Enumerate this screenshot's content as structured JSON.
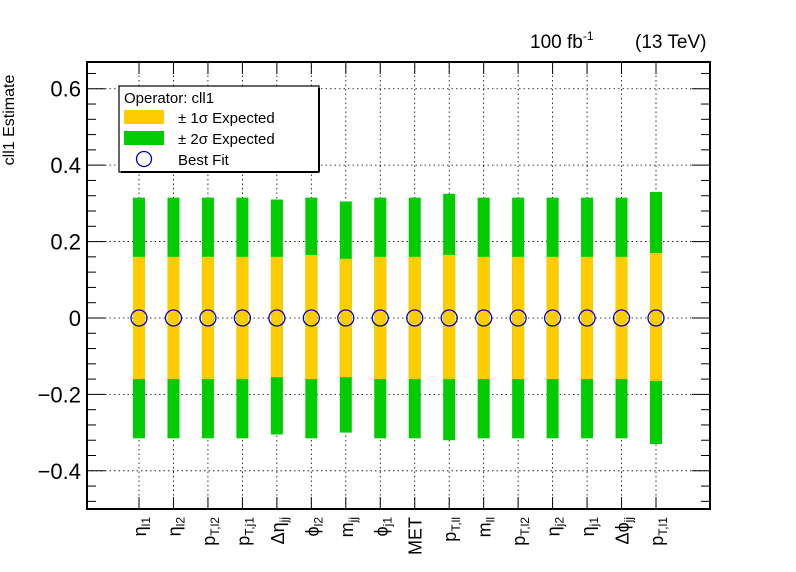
{
  "chart_data": {
    "type": "error-band",
    "header": {
      "luminosity_value": "100 fb",
      "luminosity_exponent": "-1",
      "energy": "(13 TeV)"
    },
    "ylabel": "cll1 Estimate",
    "ylim": [
      -0.5,
      0.67
    ],
    "y_ticks": [
      -0.4,
      -0.2,
      0,
      0.2,
      0.4,
      0.6
    ],
    "y_tick_labels": [
      "−0.4",
      "−0.2",
      "0",
      "0.2",
      "0.4",
      "0.6"
    ],
    "grid": true,
    "legend": {
      "placement": "top-left",
      "title": "Operator: cll1",
      "entries": [
        {
          "label": "± 1σ Expected",
          "type": "band",
          "color": "#ffcc00"
        },
        {
          "label": "± 2σ Expected",
          "type": "band",
          "color": "#00cc00"
        },
        {
          "label": "Best Fit",
          "type": "marker",
          "color": "#0000cc"
        }
      ]
    },
    "colors": {
      "one_sigma": "#ffcc00",
      "two_sigma": "#00cc00",
      "best_fit": "#0000cc"
    },
    "categories": [
      {
        "base": "η",
        "sub": "l1"
      },
      {
        "base": "η",
        "sub": "l2"
      },
      {
        "base": "p",
        "sub": "T,l2"
      },
      {
        "base": "p",
        "sub": "T,j1"
      },
      {
        "base": "Δη",
        "sub": "jj"
      },
      {
        "base": "ϕ",
        "sub": "l2"
      },
      {
        "base": "m",
        "sub": "jj"
      },
      {
        "base": "ϕ",
        "sub": "j1"
      },
      {
        "base": "MET",
        "sub": ""
      },
      {
        "base": "p",
        "sub": "T,ll"
      },
      {
        "base": "m",
        "sub": "ll"
      },
      {
        "base": "p",
        "sub": "T,l2"
      },
      {
        "base": "η",
        "sub": "j2"
      },
      {
        "base": "η",
        "sub": "j1"
      },
      {
        "base": "Δϕ",
        "sub": "jj"
      },
      {
        "base": "p",
        "sub": "T,l1"
      }
    ],
    "best_fit": [
      0,
      0,
      0,
      0,
      0,
      0,
      0,
      0,
      0,
      0,
      0,
      0,
      0,
      0,
      0,
      0
    ],
    "one_sigma": [
      [
        -0.16,
        0.16
      ],
      [
        -0.16,
        0.16
      ],
      [
        -0.16,
        0.16
      ],
      [
        -0.16,
        0.16
      ],
      [
        -0.155,
        0.16
      ],
      [
        -0.16,
        0.165
      ],
      [
        -0.155,
        0.155
      ],
      [
        -0.16,
        0.16
      ],
      [
        -0.16,
        0.16
      ],
      [
        -0.16,
        0.165
      ],
      [
        -0.16,
        0.16
      ],
      [
        -0.16,
        0.16
      ],
      [
        -0.16,
        0.16
      ],
      [
        -0.16,
        0.16
      ],
      [
        -0.16,
        0.16
      ],
      [
        -0.165,
        0.17
      ]
    ],
    "two_sigma": [
      [
        -0.315,
        0.315
      ],
      [
        -0.315,
        0.315
      ],
      [
        -0.315,
        0.315
      ],
      [
        -0.315,
        0.315
      ],
      [
        -0.305,
        0.31
      ],
      [
        -0.315,
        0.315
      ],
      [
        -0.3,
        0.305
      ],
      [
        -0.315,
        0.315
      ],
      [
        -0.315,
        0.315
      ],
      [
        -0.32,
        0.325
      ],
      [
        -0.315,
        0.315
      ],
      [
        -0.315,
        0.315
      ],
      [
        -0.315,
        0.315
      ],
      [
        -0.315,
        0.315
      ],
      [
        -0.315,
        0.315
      ],
      [
        -0.33,
        0.33
      ]
    ]
  }
}
